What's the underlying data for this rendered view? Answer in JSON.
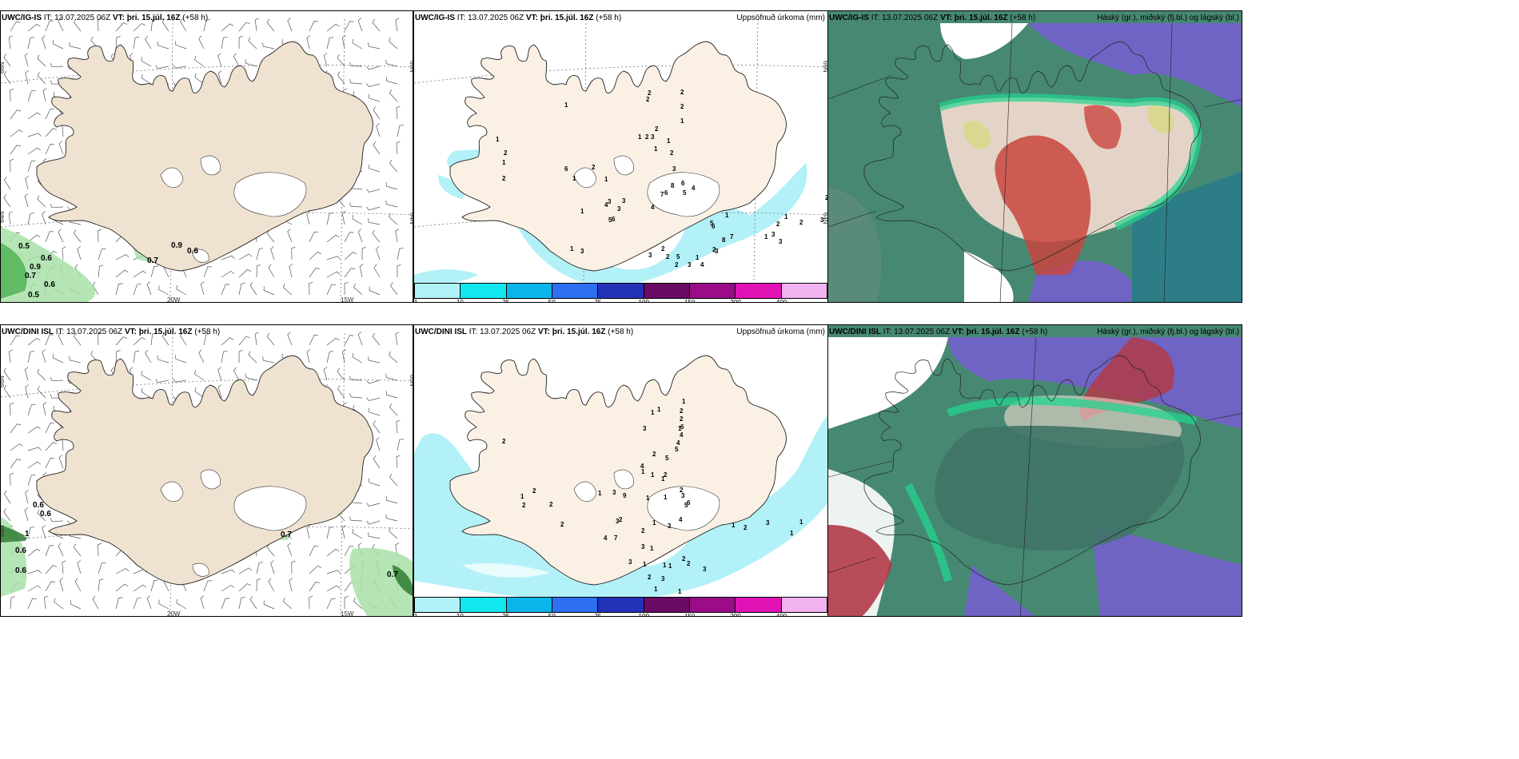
{
  "panels": {
    "p1": {
      "model": "UWC/IG-IS",
      "it_label": "IT:",
      "it": "13.07.2025 06Z",
      "vt_label": "VT:",
      "vt": "þri. 15.júl. 16Z",
      "lead": "(+58 h)",
      "title": ""
    },
    "p2": {
      "model": "UWC/IG-IS",
      "it_label": "IT:",
      "it": "13.07.2025 06Z",
      "vt_label": "VT:",
      "vt": "þri. 15.júl. 16Z",
      "lead": "(+58 h)",
      "title": "Uppsöfnuð úrkoma (mm)"
    },
    "p3": {
      "model": "UWC/IG-IS",
      "it_label": "IT:",
      "it": "13.07.2025 06Z",
      "vt_label": "VT:",
      "vt": "þri. 15.júl. 16Z",
      "lead": "(+58 h)",
      "title": "Háský (gr.), miðský (fj.bl.) og lágský (bl.)"
    },
    "p4": {
      "model": "UWC/DINI ISL",
      "it_label": "IT:",
      "it": "13.07.2025 06Z",
      "vt_label": "VT:",
      "vt": "þri. 15.júl. 16Z",
      "lead": "(+58 h)",
      "title": ""
    },
    "p5": {
      "model": "UWC/DINI ISL",
      "it_label": "IT:",
      "it": "13.07.2025 06Z",
      "vt_label": "VT:",
      "vt": "þri. 15.júl. 16Z",
      "lead": "(+58 h)",
      "title": "Uppsöfnuð úrkoma (mm)"
    },
    "p6": {
      "model": "UWC/DINI ISL",
      "it_label": "IT:",
      "it": "13.07.2025 06Z",
      "vt_label": "VT:",
      "vt": "þri. 15.júl. 16Z",
      "lead": "(+58 h)",
      "title": "Háský (gr.), miðský (fj.bl.) og lágský (bl.)"
    }
  },
  "axis_labels": {
    "lon_20w": "20W",
    "lon_15w": "15W",
    "lat_66n": "66N",
    "lat_64n": "64N"
  },
  "colorbar": {
    "ticks": [
      "1",
      "10",
      "25",
      "50",
      "75",
      "100",
      "150",
      "200",
      "400"
    ],
    "colors": [
      "#b2f1f7",
      "#12e6ef",
      "#0ab5ea",
      "#2d6ff0",
      "#2233b8",
      "#6b0b63",
      "#9a0c88",
      "#e012b4",
      "#f2b2f0"
    ]
  },
  "wind_labels": {
    "p1": [
      "0.5",
      "0.6",
      "0.9",
      "0.7",
      "0.6",
      "0.5",
      "0.9",
      "0.6",
      "0.7"
    ],
    "p4": [
      "0.6",
      "0.6",
      "1",
      "0.6",
      "0.6",
      "0.7",
      "0.7"
    ]
  },
  "precip_values": {
    "p2": [
      "1",
      "2",
      "1",
      "2",
      "1",
      "1",
      "1",
      "2",
      "2",
      "3",
      "2",
      "2",
      "1",
      "2",
      "1",
      "1",
      "1",
      "2",
      "2",
      "3",
      "6",
      "6",
      "2",
      "1",
      "1",
      "3",
      "3",
      "3",
      "4",
      "5",
      "6",
      "8",
      "7",
      "6",
      "5",
      "4",
      "3",
      "2",
      "3",
      "4",
      "5",
      "1",
      "1",
      "3",
      "7",
      "8",
      "6",
      "5",
      "4",
      "3",
      "2",
      "2",
      "2",
      "1",
      "3",
      "3",
      "1",
      "1",
      "2",
      "2",
      "1",
      "2",
      "3",
      "3"
    ],
    "p5": [
      "2",
      "1",
      "2",
      "2",
      "2",
      "2",
      "1",
      "1",
      "3",
      "5",
      "2",
      "4",
      "1",
      "1",
      "2",
      "3",
      "4",
      "6",
      "5",
      "4",
      "2",
      "1",
      "2",
      "1",
      "1",
      "3",
      "9",
      "4",
      "7",
      "3",
      "2",
      "1",
      "1",
      "1",
      "2",
      "5",
      "6",
      "4",
      "3",
      "1",
      "2",
      "3",
      "3",
      "1",
      "2",
      "3",
      "2",
      "3",
      "2",
      "1",
      "1",
      "1",
      "1",
      "1",
      "1",
      "2",
      "3",
      "1",
      "1",
      "1"
    ]
  },
  "colors": {
    "land": "#f0e2d0",
    "land_p2": "#fbf0e4",
    "coast": "#222222",
    "cloud_bg": "#478873"
  }
}
